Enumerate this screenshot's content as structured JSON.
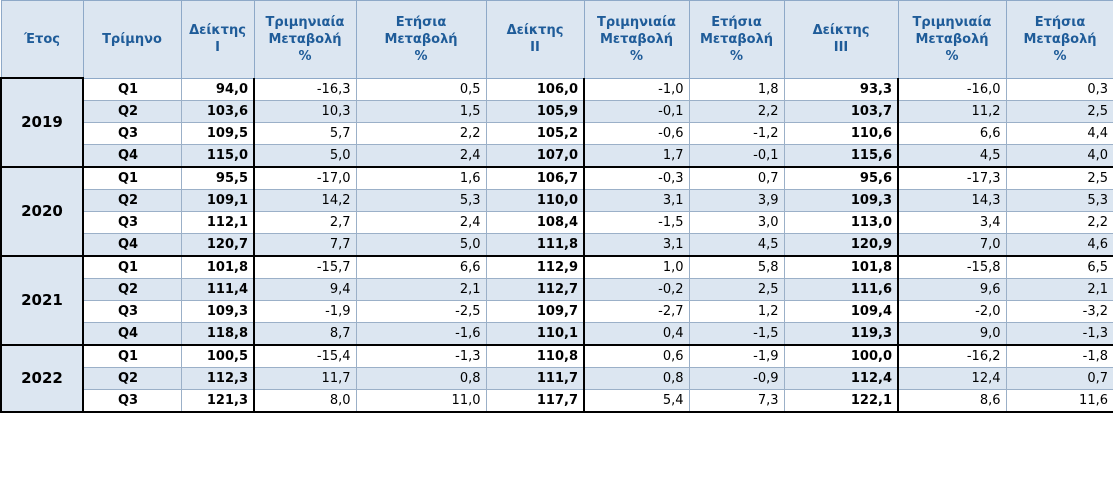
{
  "header": [
    "Έτος",
    "Τρίμηνο",
    "Δείκτης\nΙ",
    "Τριμηνιαία\nΜεταβολή\n%",
    "Ετήσια\nΜεταβολή\n%",
    "Δείκτης\nΙΙ",
    "Τριμηνιαία\nΜεταβολή\n%",
    "Ετήσια\nΜεταβολή\n%",
    "Δείκτης\nΙΙΙ",
    "Τριμηνιαία\nΜεταβολή\n%",
    "Ετήσια\nΜεταβολή\n%"
  ],
  "groups": [
    {
      "year": "2019",
      "rows": [
        [
          "Q1",
          "94,0",
          "-16,3",
          "0,5",
          "106,0",
          "-1,0",
          "1,8",
          "93,3",
          "-16,0",
          "0,3"
        ],
        [
          "Q2",
          "103,6",
          "10,3",
          "1,5",
          "105,9",
          "-0,1",
          "2,2",
          "103,7",
          "11,2",
          "2,5"
        ],
        [
          "Q3",
          "109,5",
          "5,7",
          "2,2",
          "105,2",
          "-0,6",
          "-1,2",
          "110,6",
          "6,6",
          "4,4"
        ],
        [
          "Q4",
          "115,0",
          "5,0",
          "2,4",
          "107,0",
          "1,7",
          "-0,1",
          "115,6",
          "4,5",
          "4,0"
        ]
      ]
    },
    {
      "year": "2020",
      "rows": [
        [
          "Q1",
          "95,5",
          "-17,0",
          "1,6",
          "106,7",
          "-0,3",
          "0,7",
          "95,6",
          "-17,3",
          "2,5"
        ],
        [
          "Q2",
          "109,1",
          "14,2",
          "5,3",
          "110,0",
          "3,1",
          "3,9",
          "109,3",
          "14,3",
          "5,3"
        ],
        [
          "Q3",
          "112,1",
          "2,7",
          "2,4",
          "108,4",
          "-1,5",
          "3,0",
          "113,0",
          "3,4",
          "2,2"
        ],
        [
          "Q4",
          "120,7",
          "7,7",
          "5,0",
          "111,8",
          "3,1",
          "4,5",
          "120,9",
          "7,0",
          "4,6"
        ]
      ]
    },
    {
      "year": "2021",
      "rows": [
        [
          "Q1",
          "101,8",
          "-15,7",
          "6,6",
          "112,9",
          "1,0",
          "5,8",
          "101,8",
          "-15,8",
          "6,5"
        ],
        [
          "Q2",
          "111,4",
          "9,4",
          "2,1",
          "112,7",
          "-0,2",
          "2,5",
          "111,6",
          "9,6",
          "2,1"
        ],
        [
          "Q3",
          "109,3",
          "-1,9",
          "-2,5",
          "109,7",
          "-2,7",
          "1,2",
          "109,4",
          "-2,0",
          "-3,2"
        ],
        [
          "Q4",
          "118,8",
          "8,7",
          "-1,6",
          "110,1",
          "0,4",
          "-1,5",
          "119,3",
          "9,0",
          "-1,3"
        ]
      ]
    },
    {
      "year": "2022",
      "rows": [
        [
          "Q1",
          "100,5",
          "-15,4",
          "-1,3",
          "110,8",
          "0,6",
          "-1,9",
          "100,0",
          "-16,2",
          "-1,8"
        ],
        [
          "Q2",
          "112,3",
          "11,7",
          "0,8",
          "111,7",
          "0,8",
          "-0,9",
          "112,4",
          "12,4",
          "0,7"
        ],
        [
          "Q3",
          "121,3",
          "8,0",
          "11,0",
          "117,7",
          "5,4",
          "7,3",
          "122,1",
          "8,6",
          "11,6"
        ]
      ]
    }
  ]
}
